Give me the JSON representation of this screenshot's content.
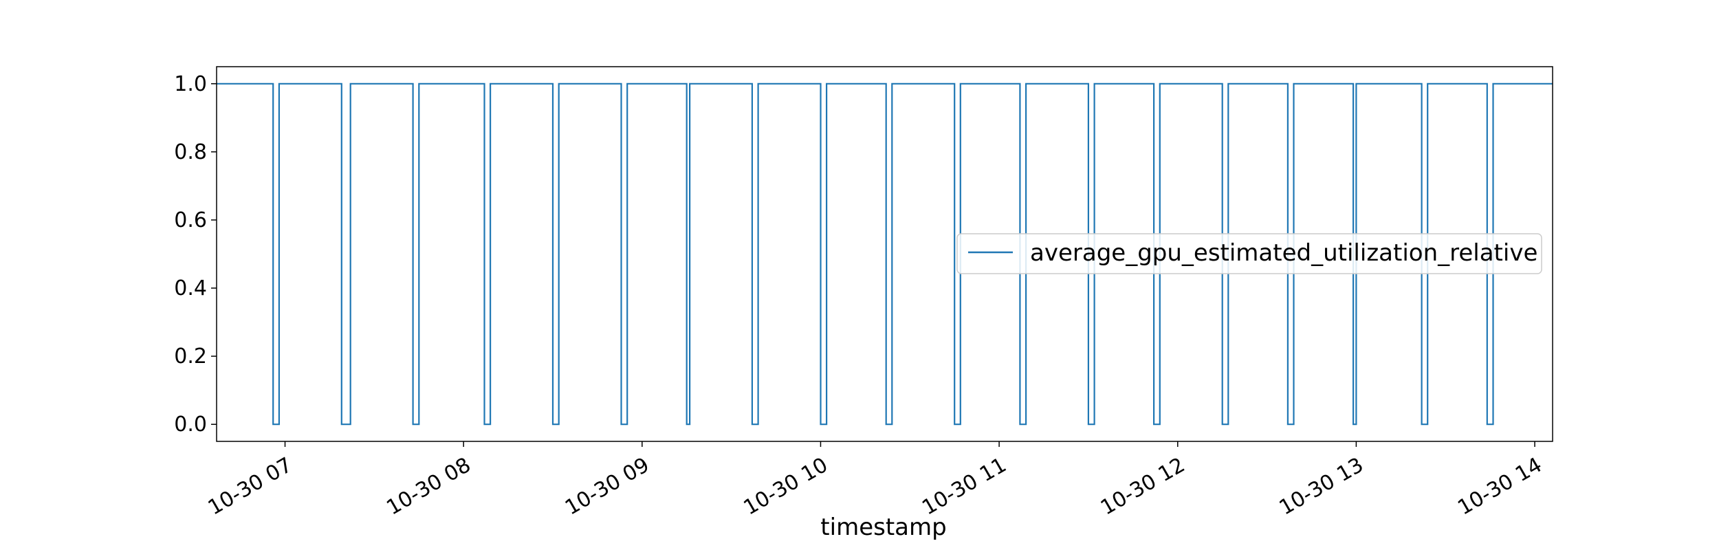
{
  "chart_data": {
    "type": "line",
    "title": "",
    "xlabel": "timestamp",
    "ylabel": "",
    "x_tick_labels": [
      "10-30 07",
      "10-30 08",
      "10-30 09",
      "10-30 10",
      "10-30 11",
      "10-30 12",
      "10-30 13",
      "10-30 14"
    ],
    "y_tick_labels": [
      "0.0",
      "0.2",
      "0.4",
      "0.6",
      "0.8",
      "1.0"
    ],
    "xlim": [
      "2023-10-30T06:37",
      "2023-10-30T14:06"
    ],
    "ylim": [
      -0.05,
      1.05
    ],
    "grid": false,
    "legend_position": "center-right",
    "line_color": "#1f77b4",
    "series": [
      {
        "name": "average_gpu_estimated_utilization_relative",
        "step_drops_to_zero": [
          {
            "start": "2023-10-30T06:56",
            "end": "2023-10-30T06:58"
          },
          {
            "start": "2023-10-30T07:19",
            "end": "2023-10-30T07:22"
          },
          {
            "start": "2023-10-30T07:43",
            "end": "2023-10-30T07:45"
          },
          {
            "start": "2023-10-30T08:07",
            "end": "2023-10-30T08:09"
          },
          {
            "start": "2023-10-30T08:30",
            "end": "2023-10-30T08:32"
          },
          {
            "start": "2023-10-30T08:53",
            "end": "2023-10-30T08:55"
          },
          {
            "start": "2023-10-30T09:15",
            "end": "2023-10-30T09:16"
          },
          {
            "start": "2023-10-30T09:37",
            "end": "2023-10-30T09:39"
          },
          {
            "start": "2023-10-30T10:00",
            "end": "2023-10-30T10:02"
          },
          {
            "start": "2023-10-30T10:22",
            "end": "2023-10-30T10:24"
          },
          {
            "start": "2023-10-30T10:45",
            "end": "2023-10-30T10:47"
          },
          {
            "start": "2023-10-30T11:07",
            "end": "2023-10-30T11:09"
          },
          {
            "start": "2023-10-30T11:30",
            "end": "2023-10-30T11:32"
          },
          {
            "start": "2023-10-30T11:52",
            "end": "2023-10-30T11:54"
          },
          {
            "start": "2023-10-30T12:15",
            "end": "2023-10-30T12:17"
          },
          {
            "start": "2023-10-30T12:37",
            "end": "2023-10-30T12:39"
          },
          {
            "start": "2023-10-30T12:59",
            "end": "2023-10-30T13:00"
          },
          {
            "start": "2023-10-30T13:22",
            "end": "2023-10-30T13:24"
          },
          {
            "start": "2023-10-30T13:44",
            "end": "2023-10-30T13:46"
          }
        ]
      }
    ]
  }
}
